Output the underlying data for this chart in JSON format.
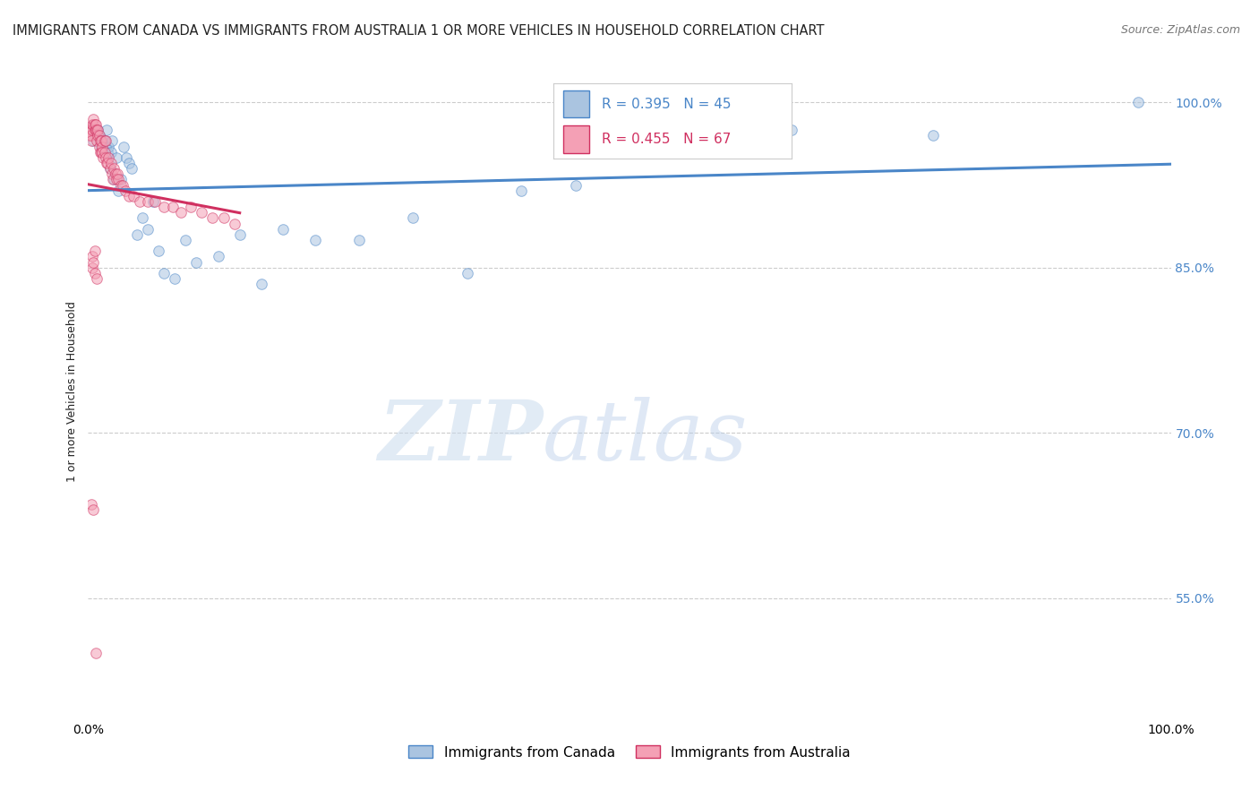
{
  "title": "IMMIGRANTS FROM CANADA VS IMMIGRANTS FROM AUSTRALIA 1 OR MORE VEHICLES IN HOUSEHOLD CORRELATION CHART",
  "source": "Source: ZipAtlas.com",
  "ylabel": "1 or more Vehicles in Household",
  "xlim": [
    0,
    1.0
  ],
  "ylim": [
    0.44,
    1.035
  ],
  "yticks": [
    0.55,
    0.7,
    0.85,
    1.0
  ],
  "ytick_labels": [
    "55.0%",
    "70.0%",
    "85.0%",
    "100.0%"
  ],
  "canada_R": 0.395,
  "canada_N": 45,
  "australia_R": 0.455,
  "australia_N": 67,
  "canada_color": "#aac4e0",
  "australia_color": "#f4a0b5",
  "canada_line_color": "#4a86c8",
  "australia_line_color": "#d03060",
  "legend_label_canada": "Immigrants from Canada",
  "legend_label_australia": "Immigrants from Australia",
  "watermark_zip": "ZIP",
  "watermark_atlas": "atlas",
  "canada_x": [
    0.005,
    0.007,
    0.009,
    0.01,
    0.012,
    0.013,
    0.015,
    0.016,
    0.017,
    0.018,
    0.019,
    0.02,
    0.021,
    0.022,
    0.024,
    0.026,
    0.028,
    0.03,
    0.033,
    0.035,
    0.038,
    0.04,
    0.045,
    0.05,
    0.055,
    0.06,
    0.065,
    0.07,
    0.08,
    0.09,
    0.1,
    0.12,
    0.14,
    0.16,
    0.18,
    0.21,
    0.25,
    0.3,
    0.35,
    0.4,
    0.45,
    0.55,
    0.65,
    0.78,
    0.97
  ],
  "canada_y": [
    0.965,
    0.97,
    0.975,
    0.97,
    0.96,
    0.965,
    0.965,
    0.96,
    0.975,
    0.955,
    0.96,
    0.94,
    0.955,
    0.965,
    0.93,
    0.95,
    0.92,
    0.93,
    0.96,
    0.95,
    0.945,
    0.94,
    0.88,
    0.895,
    0.885,
    0.91,
    0.865,
    0.845,
    0.84,
    0.875,
    0.855,
    0.86,
    0.88,
    0.835,
    0.885,
    0.875,
    0.875,
    0.895,
    0.845,
    0.92,
    0.925,
    0.965,
    0.975,
    0.97,
    1.0
  ],
  "australia_x": [
    0.001,
    0.0015,
    0.002,
    0.003,
    0.003,
    0.004,
    0.004,
    0.005,
    0.005,
    0.006,
    0.006,
    0.007,
    0.007,
    0.008,
    0.008,
    0.009,
    0.009,
    0.01,
    0.01,
    0.011,
    0.011,
    0.012,
    0.012,
    0.013,
    0.013,
    0.014,
    0.015,
    0.015,
    0.016,
    0.016,
    0.017,
    0.018,
    0.019,
    0.02,
    0.021,
    0.022,
    0.023,
    0.024,
    0.025,
    0.026,
    0.027,
    0.028,
    0.03,
    0.032,
    0.034,
    0.038,
    0.042,
    0.048,
    0.055,
    0.062,
    0.07,
    0.078,
    0.086,
    0.095,
    0.105,
    0.115,
    0.125,
    0.135,
    0.004,
    0.006,
    0.008,
    0.004,
    0.005,
    0.006,
    0.003,
    0.005,
    0.007
  ],
  "australia_y": [
    0.97,
    0.975,
    0.97,
    0.97,
    0.965,
    0.975,
    0.98,
    0.98,
    0.985,
    0.975,
    0.98,
    0.975,
    0.98,
    0.965,
    0.975,
    0.97,
    0.975,
    0.96,
    0.97,
    0.965,
    0.955,
    0.955,
    0.965,
    0.96,
    0.955,
    0.95,
    0.955,
    0.965,
    0.95,
    0.965,
    0.945,
    0.945,
    0.95,
    0.94,
    0.945,
    0.935,
    0.93,
    0.94,
    0.935,
    0.93,
    0.935,
    0.93,
    0.925,
    0.925,
    0.92,
    0.915,
    0.915,
    0.91,
    0.91,
    0.91,
    0.905,
    0.905,
    0.9,
    0.905,
    0.9,
    0.895,
    0.895,
    0.89,
    0.85,
    0.845,
    0.84,
    0.86,
    0.855,
    0.865,
    0.635,
    0.63,
    0.5
  ],
  "background_color": "#ffffff",
  "grid_color": "#cccccc",
  "title_color": "#222222",
  "right_axis_color": "#4a86c8",
  "title_fontsize": 10.5,
  "source_fontsize": 9,
  "axis_label_fontsize": 9,
  "tick_fontsize": 10,
  "legend_fontsize": 11,
  "marker_size": 70,
  "marker_alpha": 0.55,
  "line_width": 2.2
}
